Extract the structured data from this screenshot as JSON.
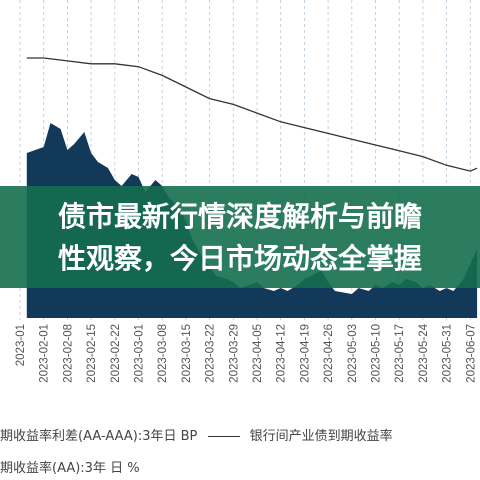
{
  "chart_data": {
    "type": "area",
    "x_tick_labels": [
      "2023-01",
      "2023-02-01",
      "2023-02-08",
      "2023-02-15",
      "2023-02-22",
      "2023-03-01",
      "2023-03-08",
      "2023-03-15",
      "2023-03-22",
      "2023-03-29",
      "2023-04-05",
      "2023-04-12",
      "2023-04-19",
      "2023-04-26",
      "2023-05-03",
      "2023-05-10",
      "2023-05-17",
      "2023-05-24",
      "2023-05-31",
      "2023-06-07"
    ],
    "series": [
      {
        "name": "期收益率利差(AA-AAA):3年日 BP",
        "style": "filled-area",
        "color": "#12395a",
        "x": [
          "2023-01-27",
          "2023-02-01",
          "2023-02-03",
          "2023-02-06",
          "2023-02-08",
          "2023-02-10",
          "2023-02-13",
          "2023-02-15",
          "2023-02-17",
          "2023-02-20",
          "2023-02-22",
          "2023-02-24",
          "2023-02-27",
          "2023-03-01",
          "2023-03-03",
          "2023-03-06",
          "2023-03-08",
          "2023-03-10",
          "2023-03-13",
          "2023-03-15",
          "2023-03-17",
          "2023-03-20",
          "2023-03-22",
          "2023-03-24",
          "2023-03-27",
          "2023-03-29",
          "2023-03-31",
          "2023-04-03",
          "2023-04-05",
          "2023-04-07",
          "2023-04-10",
          "2023-04-12",
          "2023-04-14",
          "2023-04-17",
          "2023-04-19",
          "2023-04-21",
          "2023-04-24",
          "2023-04-26",
          "2023-04-28",
          "2023-05-03",
          "2023-05-05",
          "2023-05-08",
          "2023-05-10",
          "2023-05-12",
          "2023-05-15",
          "2023-05-17",
          "2023-05-19",
          "2023-05-22",
          "2023-05-24",
          "2023-05-26",
          "2023-05-29",
          "2023-05-31",
          "2023-06-02",
          "2023-06-05",
          "2023-06-07",
          "2023-06-09"
        ],
        "values": [
          85,
          87,
          95,
          93,
          86,
          88,
          92,
          85,
          82,
          80,
          76,
          74,
          78,
          77,
          72,
          76,
          74,
          70,
          67,
          62,
          56,
          50,
          47,
          44,
          43,
          42,
          40,
          41,
          42,
          40,
          39,
          40,
          39,
          41,
          43,
          44,
          46,
          42,
          39,
          38,
          40,
          39,
          41,
          40,
          42,
          41,
          43,
          42,
          40,
          41,
          39,
          40,
          39,
          43,
          48,
          53
        ]
      },
      {
        "name": "银行间产业债到期收益率(AA):3年 日 %",
        "style": "line",
        "color": "#333333",
        "x": [
          "2023-01-27",
          "2023-02-01",
          "2023-02-08",
          "2023-02-15",
          "2023-02-22",
          "2023-03-01",
          "2023-03-08",
          "2023-03-15",
          "2023-03-22",
          "2023-03-29",
          "2023-04-05",
          "2023-04-12",
          "2023-04-19",
          "2023-04-26",
          "2023-05-03",
          "2023-05-10",
          "2023-05-17",
          "2023-05-24",
          "2023-05-31",
          "2023-06-07",
          "2023-06-09"
        ],
        "values": [
          4.06,
          4.06,
          4.05,
          4.04,
          4.04,
          4.03,
          4.0,
          3.96,
          3.92,
          3.9,
          3.87,
          3.84,
          3.82,
          3.8,
          3.78,
          3.76,
          3.74,
          3.72,
          3.69,
          3.67,
          3.68
        ]
      }
    ],
    "legend_row1_prefix": "期收益率利差(AA-AAA):3年日 BP",
    "legend_row1_suffix": "银行间产业债到期收益率",
    "legend_row2": "期收益率(AA):3年 日 %",
    "grid": "vertical dashed lines at each x tick"
  },
  "banner": {
    "title_line1": "债市最新行情深度解析与前瞻",
    "title_line2": "性观察，今日市场动态全掌握"
  }
}
